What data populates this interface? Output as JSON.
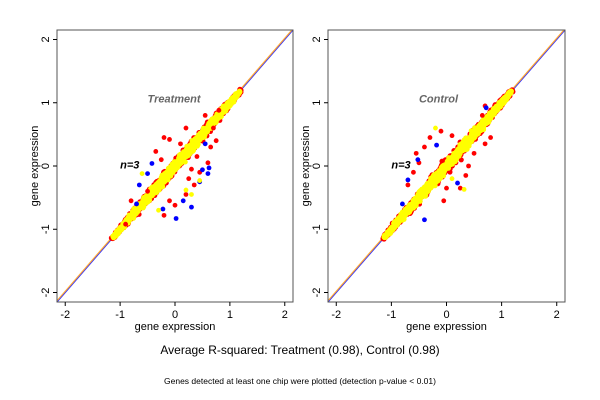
{
  "chart_data": [
    {
      "type": "scatter",
      "title": "Treatment",
      "annotation": "n=3",
      "xlabel": "gene expression",
      "ylabel": "gene expression",
      "xlim": [
        -2.15,
        2.15
      ],
      "ylim": [
        -2.15,
        2.15
      ],
      "xticks": [
        "-2",
        "-1",
        "0",
        "1",
        "2"
      ],
      "yticks": [
        "-2",
        "-1",
        "0",
        "1",
        "2"
      ],
      "grid": false,
      "reference_lines": [
        {
          "name": "identity",
          "slope": 1,
          "intercept": 0,
          "color": "#3333ff"
        },
        {
          "name": "fit",
          "slope": 1,
          "intercept": 0.02,
          "color": "#ffaa33"
        }
      ],
      "cloud": {
        "x_range": [
          -1.15,
          1.2
        ],
        "spread": 0.09,
        "count": 900
      },
      "series": [
        {
          "name": "blue",
          "color": "#0000ff",
          "points": [
            [
              -0.42,
              0.04
            ],
            [
              -0.5,
              -0.12
            ],
            [
              -0.65,
              -0.3
            ],
            [
              0.15,
              -0.55
            ],
            [
              0.02,
              -0.83
            ],
            [
              0.3,
              -0.65
            ],
            [
              0.5,
              -0.06
            ],
            [
              0.6,
              -0.12
            ],
            [
              0.62,
              -0.03
            ],
            [
              -0.7,
              -0.6
            ],
            [
              0.45,
              -0.25
            ],
            [
              0.55,
              0.35
            ],
            [
              -0.22,
              -0.68
            ]
          ]
        },
        {
          "name": "red",
          "color": "#ff0000",
          "points": [
            [
              -0.2,
              0.45
            ],
            [
              -0.1,
              0.42
            ],
            [
              0.2,
              0.6
            ],
            [
              -0.35,
              0.23
            ],
            [
              0.1,
              0.35
            ],
            [
              0.55,
              0.8
            ],
            [
              0.75,
              0.4
            ],
            [
              0.6,
              0.05
            ],
            [
              0.45,
              -0.1
            ],
            [
              0.35,
              -0.3
            ],
            [
              0.2,
              -0.45
            ],
            [
              0.0,
              -0.62
            ],
            [
              -0.2,
              -0.78
            ],
            [
              -0.1,
              -0.55
            ],
            [
              0.65,
              0.3
            ],
            [
              0.3,
              -0.05
            ],
            [
              -0.5,
              -0.4
            ],
            [
              -0.8,
              -0.55
            ],
            [
              0.4,
              0.15
            ],
            [
              0.25,
              -0.2
            ],
            [
              -0.25,
              0.1
            ],
            [
              0.7,
              0.6
            ],
            [
              0.8,
              0.88
            ],
            [
              -0.9,
              -0.92
            ]
          ]
        },
        {
          "name": "yellow",
          "color": "#ffff00",
          "points": [
            [
              -0.6,
              -0.12
            ],
            [
              0.45,
              -0.23
            ],
            [
              0.3,
              -0.45
            ],
            [
              -0.3,
              -0.7
            ],
            [
              0.2,
              -0.38
            ]
          ]
        }
      ]
    },
    {
      "type": "scatter",
      "title": "Control",
      "annotation": "n=3",
      "xlabel": "gene expression",
      "ylabel": "gene expression",
      "xlim": [
        -2.15,
        2.15
      ],
      "ylim": [
        -2.15,
        2.15
      ],
      "xticks": [
        "-2",
        "-1",
        "0",
        "1",
        "2"
      ],
      "yticks": [
        "-2",
        "-1",
        "0",
        "1",
        "2"
      ],
      "grid": false,
      "reference_lines": [
        {
          "name": "identity",
          "slope": 1,
          "intercept": 0,
          "color": "#3333ff"
        },
        {
          "name": "fit",
          "slope": 1,
          "intercept": 0.02,
          "color": "#ffaa33"
        }
      ],
      "cloud": {
        "x_range": [
          -1.15,
          1.2
        ],
        "spread": 0.09,
        "count": 900
      },
      "series": [
        {
          "name": "blue",
          "color": "#0000ff",
          "points": [
            [
              -0.52,
              0.1
            ],
            [
              -0.7,
              -0.22
            ],
            [
              -0.4,
              -0.85
            ],
            [
              0.72,
              0.92
            ],
            [
              0.2,
              -0.27
            ],
            [
              -0.18,
              0.33
            ],
            [
              -0.8,
              -0.6
            ]
          ]
        },
        {
          "name": "red",
          "color": "#ff0000",
          "points": [
            [
              -0.3,
              0.45
            ],
            [
              -0.55,
              0.2
            ],
            [
              -0.6,
              -0.1
            ],
            [
              -0.7,
              -0.3
            ],
            [
              -0.4,
              0.3
            ],
            [
              0.65,
              0.8
            ],
            [
              0.7,
              0.95
            ],
            [
              0.8,
              0.45
            ],
            [
              0.4,
              0.0
            ],
            [
              0.25,
              -0.35
            ],
            [
              -0.05,
              -0.55
            ],
            [
              0.5,
              0.2
            ],
            [
              0.7,
              0.35
            ],
            [
              -0.1,
              0.55
            ],
            [
              0.1,
              0.48
            ],
            [
              0.35,
              -0.15
            ],
            [
              -0.5,
              0.05
            ],
            [
              0.0,
              -0.35
            ]
          ]
        },
        {
          "name": "yellow",
          "color": "#ffff00",
          "points": [
            [
              0.32,
              -0.37
            ],
            [
              -0.2,
              0.6
            ],
            [
              0.1,
              -0.2
            ]
          ]
        }
      ]
    }
  ],
  "captions": {
    "main": "Average R-squared: Treatment (0.98), Control (0.98)",
    "sub": "Genes detected at least one chip were plotted (detection p-value < 0.01)"
  }
}
